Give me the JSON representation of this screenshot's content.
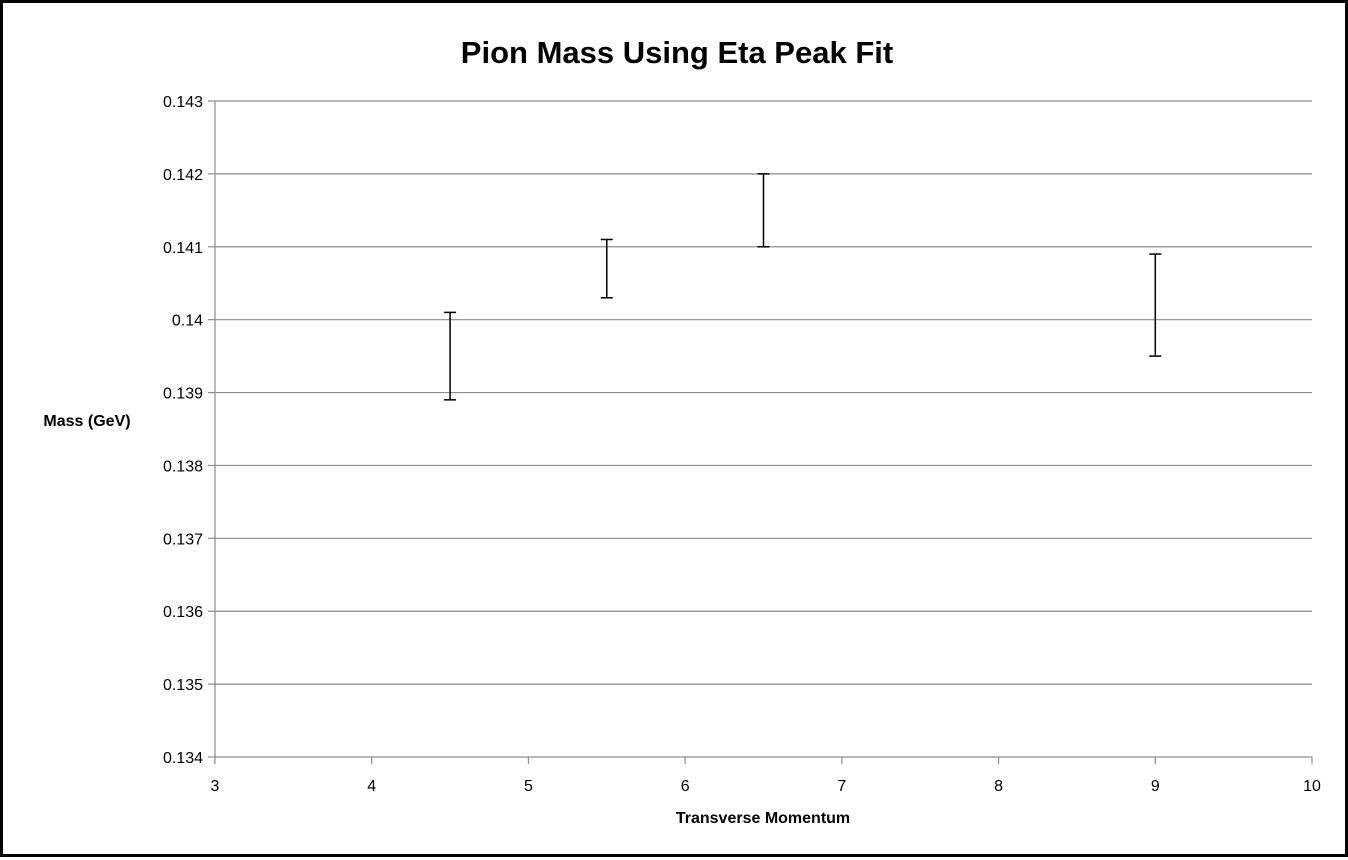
{
  "chart_data": {
    "type": "scatter",
    "title": "Pion Mass Using Eta Peak Fit",
    "xlabel": "Transverse Momentum",
    "ylabel": "Mass (GeV)",
    "xlim": [
      3,
      10
    ],
    "ylim": [
      0.134,
      0.143
    ],
    "x_ticks": [
      "3",
      "4",
      "5",
      "6",
      "7",
      "8",
      "9",
      "10"
    ],
    "y_ticks": [
      "0.134",
      "0.135",
      "0.136",
      "0.137",
      "0.138",
      "0.139",
      "0.14",
      "0.141",
      "0.142",
      "0.143"
    ],
    "grid": "horizontal",
    "legend": "none",
    "points": [
      {
        "x": 4.5,
        "y": 0.1395,
        "y_low": 0.1389,
        "y_high": 0.1401
      },
      {
        "x": 5.5,
        "y": 0.1407,
        "y_low": 0.1403,
        "y_high": 0.1411
      },
      {
        "x": 6.5,
        "y": 0.1415,
        "y_low": 0.141,
        "y_high": 0.142
      },
      {
        "x": 9.0,
        "y": 0.1402,
        "y_low": 0.1395,
        "y_high": 0.1409
      }
    ],
    "marker_color": "#000000"
  }
}
